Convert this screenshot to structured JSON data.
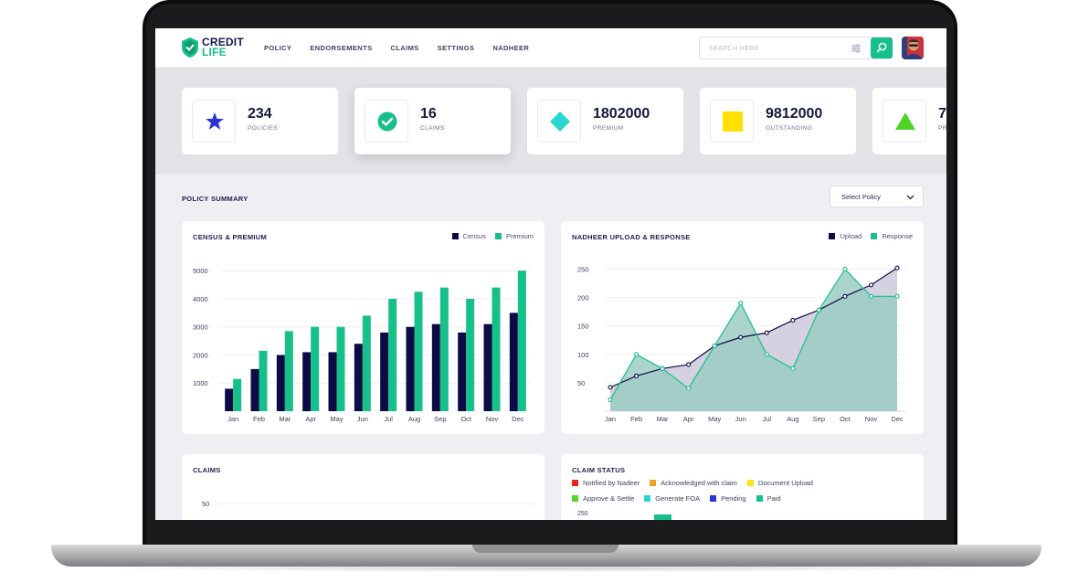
{
  "app": {
    "logo_line1": "CREDIT",
    "logo_line2": "LIFE",
    "nav": [
      "POLICY",
      "ENDORSEMENTS",
      "CLAIMS",
      "SETTINGS",
      "NADHEER"
    ],
    "search_placeholder": "SEARCH HERE",
    "accent_color": "#17c08a",
    "navy_color": "#0d0b45"
  },
  "stats": [
    {
      "value": "234",
      "label": "POLICIES",
      "icon": "star-icon",
      "color": "#2a34d6"
    },
    {
      "value": "16",
      "label": "CLAIMS",
      "icon": "check-circle-icon",
      "color": "#17c08a"
    },
    {
      "value": "1802000",
      "label": "PREMIUM",
      "icon": "diamond-icon",
      "color": "#28d7cf"
    },
    {
      "value": "9812000",
      "label": "OUTSTANDING",
      "icon": "square-icon",
      "color": "#ffe000"
    },
    {
      "value": "7",
      "label": "PR",
      "icon": "triangle-icon",
      "color": "#4fd428"
    }
  ],
  "summary": {
    "title": "POLICY SUMMARY",
    "select_label": "Select Policy"
  },
  "cards": {
    "census_title": "CENSUS & PREMIUM",
    "nadheer_title": "NADHEER UPLOAD & RESPONSE",
    "claims_title": "CLAIMS",
    "claim_status_title": "CLAIM STATUS"
  },
  "claims_axis_first_tick": "50",
  "claim_status": {
    "legend": [
      {
        "name": "Notified by Nadeer",
        "color": "#e8221c"
      },
      {
        "name": "Acknowledged with claim",
        "color": "#f0a02a"
      },
      {
        "name": "Document Upload",
        "color": "#ffe21a"
      },
      {
        "name": "Approve & Settle",
        "color": "#56d62a"
      },
      {
        "name": "Generate FOA",
        "color": "#2ed3d3"
      },
      {
        "name": "Pending",
        "color": "#2a34d6"
      },
      {
        "name": "Paid",
        "color": "#17c08a"
      }
    ],
    "axis_first_tick": "250"
  },
  "chart_data": [
    {
      "type": "bar",
      "title": "CENSUS & PREMIUM",
      "categories": [
        "Jan",
        "Feb",
        "Mar",
        "Apr",
        "May",
        "Jun",
        "Jul",
        "Aug",
        "Sep",
        "Oct",
        "Nov",
        "Dec"
      ],
      "series": [
        {
          "name": "Census",
          "color": "#0d0b45",
          "values": [
            800,
            1500,
            2000,
            2100,
            2100,
            2400,
            2800,
            3000,
            3100,
            2800,
            3100,
            3500
          ]
        },
        {
          "name": "Premium",
          "color": "#17c08a",
          "values": [
            1150,
            2150,
            2850,
            3000,
            3000,
            3400,
            4000,
            4250,
            4400,
            4000,
            4400,
            5000
          ]
        }
      ],
      "yticks": [
        1000,
        2000,
        3000,
        4000,
        5000
      ],
      "ylim": [
        0,
        5300
      ],
      "grid": true,
      "legend": "top-right"
    },
    {
      "type": "area",
      "title": "NADHEER UPLOAD & RESPONSE",
      "categories": [
        "Jan",
        "Feb",
        "Mar",
        "Apr",
        "May",
        "Jun",
        "Jul",
        "Aug",
        "Sep",
        "Oct",
        "Nov",
        "Dec"
      ],
      "series": [
        {
          "name": "Upload",
          "color": "#0d0b45",
          "fill": "#cdc9dc",
          "values": [
            42,
            62,
            75,
            82,
            115,
            130,
            138,
            160,
            178,
            202,
            222,
            252
          ]
        },
        {
          "name": "Response",
          "color": "#17c08a",
          "fill": "#9ccdc3",
          "values": [
            20,
            100,
            75,
            40,
            115,
            190,
            100,
            75,
            178,
            250,
            202,
            202
          ]
        }
      ],
      "yticks": [
        50,
        100,
        150,
        200,
        250
      ],
      "ylim": [
        0,
        262
      ],
      "grid": true,
      "legend": "top-right"
    }
  ]
}
